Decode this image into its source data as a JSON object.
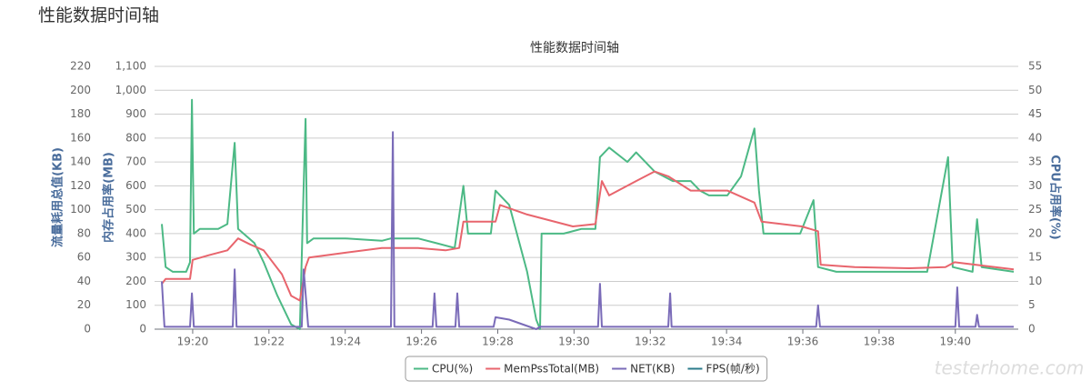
{
  "page_title": "性能数据时间轴",
  "watermark": "testerhome.com",
  "chart_data": {
    "type": "line",
    "title": "性能数据时间轴",
    "xlim": [
      1159,
      1181.65
    ],
    "xticks": [
      {
        "value": 1160,
        "label": "19:20"
      },
      {
        "value": 1162,
        "label": "19:22"
      },
      {
        "value": 1164,
        "label": "19:24"
      },
      {
        "value": 1166,
        "label": "19:26"
      },
      {
        "value": 1168,
        "label": "19:28"
      },
      {
        "value": 1170,
        "label": "19:30"
      },
      {
        "value": 1172,
        "label": "19:32"
      },
      {
        "value": 1174,
        "label": "19:34"
      },
      {
        "value": 1176,
        "label": "19:36"
      },
      {
        "value": 1178,
        "label": "19:38"
      },
      {
        "value": 1180,
        "label": "19:40"
      }
    ],
    "ylabel": "流量耗用总值(KB)",
    "ylim": [
      0,
      220
    ],
    "yticks": [
      0,
      20,
      40,
      60,
      80,
      100,
      120,
      140,
      160,
      180,
      200,
      220
    ],
    "y2label": "内存占用率(MB)",
    "y2lim": [
      0,
      1100
    ],
    "y2ticks": [
      0,
      100,
      200,
      300,
      400,
      500,
      600,
      700,
      800,
      900,
      {
        "value": 1000,
        "label": "1,000"
      },
      {
        "value": 1100,
        "label": "1,100"
      }
    ],
    "y3label": "CPU占用率(%)",
    "y3lim": [
      0,
      55
    ],
    "y3ticks": [
      0,
      5,
      10,
      15,
      20,
      25,
      30,
      35,
      40,
      45,
      50,
      55
    ],
    "grid": true,
    "legend": "bottom",
    "series": [
      {
        "name": "CPU(%)",
        "color": "#4cb985",
        "axis": "y3",
        "x": [
          1159.19,
          1159.29,
          1159.48,
          1159.83,
          1159.93,
          1159.98,
          1160.03,
          1160.19,
          1160.67,
          1160.91,
          1161.1,
          1161.19,
          1161.62,
          1161.86,
          1162.22,
          1162.58,
          1162.81,
          1162.91,
          1162.96,
          1163.0,
          1163.17,
          1164.01,
          1164.96,
          1165.2,
          1165.91,
          1166.39,
          1166.87,
          1167.1,
          1167.22,
          1167.82,
          1167.94,
          1168.3,
          1168.77,
          1169.01,
          1169.11,
          1169.15,
          1169.73,
          1170.2,
          1170.56,
          1170.68,
          1170.92,
          1171.4,
          1171.63,
          1172.11,
          1172.59,
          1173.06,
          1173.3,
          1173.54,
          1174.02,
          1174.38,
          1174.73,
          1174.85,
          1174.97,
          1175.93,
          1176.28,
          1176.4,
          1176.88,
          1177.83,
          1178.79,
          1179.26,
          1179.81,
          1179.93,
          1180.45,
          1180.57,
          1180.69,
          1181.53
        ],
        "values": [
          22,
          13,
          12,
          12,
          14,
          48,
          20,
          21,
          21,
          22,
          39,
          21,
          18,
          14,
          7,
          1,
          0,
          30,
          44,
          18,
          19,
          19,
          18.5,
          19,
          19,
          18,
          17,
          30,
          20,
          20,
          29,
          26,
          12,
          2,
          0,
          20,
          20,
          21,
          21,
          36,
          38,
          35,
          37,
          33,
          31,
          31,
          29,
          28,
          28,
          32,
          42,
          29,
          20,
          20,
          27,
          13,
          12,
          12,
          12,
          12,
          36,
          13,
          12,
          23,
          13,
          12
        ]
      },
      {
        "name": "MemPssTotal(MB)",
        "color": "#e8656d",
        "axis": "y2",
        "x": [
          1159.19,
          1159.29,
          1159.93,
          1160.0,
          1160.43,
          1160.91,
          1161.19,
          1161.5,
          1161.86,
          1162.34,
          1162.58,
          1162.81,
          1162.96,
          1163.05,
          1164.01,
          1164.96,
          1165.91,
          1166.63,
          1166.99,
          1167.1,
          1167.94,
          1168.06,
          1168.77,
          1169.25,
          1169.97,
          1170.56,
          1170.73,
          1170.92,
          1171.63,
          1172.11,
          1172.47,
          1173.06,
          1174.02,
          1174.73,
          1174.92,
          1175.97,
          1176.4,
          1176.47,
          1177.36,
          1178.79,
          1179.74,
          1179.98,
          1181.53
        ],
        "values": [
          190,
          210,
          210,
          290,
          310,
          330,
          380,
          355,
          330,
          230,
          140,
          120,
          260,
          300,
          320,
          340,
          340,
          330,
          340,
          450,
          450,
          520,
          480,
          460,
          430,
          440,
          620,
          560,
          620,
          660,
          640,
          580,
          580,
          530,
          450,
          430,
          410,
          270,
          260,
          255,
          260,
          280,
          250
        ]
      },
      {
        "name": "NET(KB)",
        "color": "#7a6bb8",
        "axis": "y",
        "x": [
          1159.19,
          1159.26,
          1159.93,
          1159.98,
          1160.03,
          1161.05,
          1161.1,
          1161.15,
          1162.86,
          1162.91,
          1162.96,
          1163.03,
          1165.2,
          1165.25,
          1165.29,
          1166.29,
          1166.34,
          1166.39,
          1166.89,
          1166.94,
          1166.99,
          1167.89,
          1167.94,
          1168.3,
          1169.01,
          1169.11,
          1170.63,
          1170.68,
          1170.73,
          1172.47,
          1172.52,
          1172.56,
          1176.35,
          1176.4,
          1176.45,
          1180.0,
          1180.05,
          1180.1,
          1180.53,
          1180.57,
          1180.62,
          1181.53
        ],
        "values": [
          40,
          2,
          2,
          30,
          2,
          2,
          50,
          2,
          2,
          50,
          30,
          2,
          2,
          165,
          2,
          2,
          30,
          2,
          2,
          30,
          2,
          2,
          10,
          8,
          0,
          2,
          2,
          38,
          2,
          2,
          30,
          2,
          2,
          20,
          2,
          2,
          35,
          2,
          2,
          12,
          2,
          2
        ]
      },
      {
        "name": "FPS(帧/秒)",
        "color": "#2b7b8b",
        "x": [],
        "values": []
      }
    ]
  }
}
